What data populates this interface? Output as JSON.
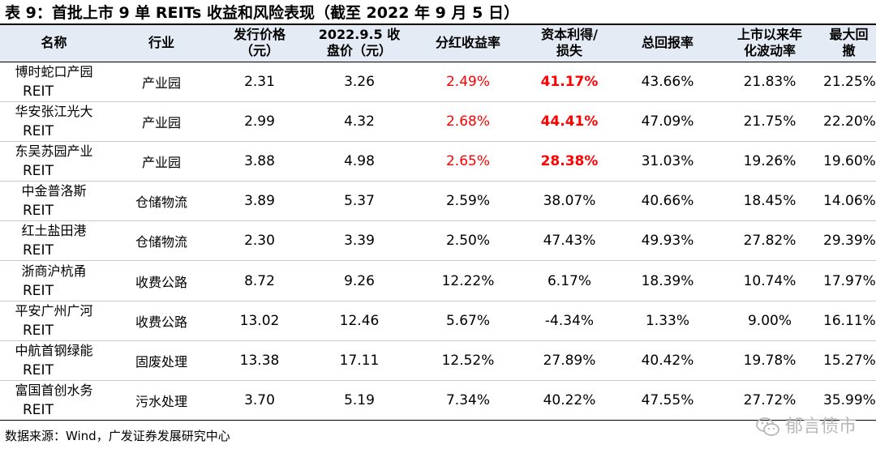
{
  "title": "表 9：首批上市 9 单 REITs 收益和风险表现（截至 2022 年 9 月 5 日）",
  "columns": [
    {
      "line1": "名称",
      "line2": ""
    },
    {
      "line1": "行业",
      "line2": ""
    },
    {
      "line1": "发行价格",
      "line2": "（元）"
    },
    {
      "line1": "2022.9.5 收",
      "line2": "盘价（元）"
    },
    {
      "line1": "分红收益率",
      "line2": ""
    },
    {
      "line1": "资本利得/",
      "line2": "损失"
    },
    {
      "line1": "总回报率",
      "line2": ""
    },
    {
      "line1": "上市以来年",
      "line2": "化波动率"
    },
    {
      "line1": "最大回撤",
      "line2": ""
    }
  ],
  "rows": [
    {
      "name1": "博时蛇口产园",
      "name2": "REIT",
      "sector": "产业园",
      "issue_price": "2.31",
      "close_price": "3.26",
      "dividend_yield": "2.49%",
      "capital_gain": "41.17%",
      "total_return": "43.66%",
      "volatility": "21.83%",
      "max_drawdown": "21.25%",
      "highlight": true
    },
    {
      "name1": "华安张江光大",
      "name2": "REIT",
      "sector": "产业园",
      "issue_price": "2.99",
      "close_price": "4.32",
      "dividend_yield": "2.68%",
      "capital_gain": "44.41%",
      "total_return": "47.09%",
      "volatility": "21.75%",
      "max_drawdown": "22.20%",
      "highlight": true
    },
    {
      "name1": "东吴苏园产业",
      "name2": "REIT",
      "sector": "产业园",
      "issue_price": "3.88",
      "close_price": "4.98",
      "dividend_yield": "2.65%",
      "capital_gain": "28.38%",
      "total_return": "31.03%",
      "volatility": "19.26%",
      "max_drawdown": "19.60%",
      "highlight": true
    },
    {
      "name1": "中金普洛斯",
      "name2": "REIT",
      "sector": "仓储物流",
      "issue_price": "3.89",
      "close_price": "5.37",
      "dividend_yield": "2.59%",
      "capital_gain": "38.07%",
      "total_return": "40.66%",
      "volatility": "18.45%",
      "max_drawdown": "14.06%",
      "highlight": false
    },
    {
      "name1": "红土盐田港",
      "name2": "REIT",
      "sector": "仓储物流",
      "issue_price": "2.30",
      "close_price": "3.39",
      "dividend_yield": "2.50%",
      "capital_gain": "47.43%",
      "total_return": "49.93%",
      "volatility": "27.82%",
      "max_drawdown": "29.39%",
      "highlight": false
    },
    {
      "name1": "浙商沪杭甬",
      "name2": "REIT",
      "sector": "收费公路",
      "issue_price": "8.72",
      "close_price": "9.26",
      "dividend_yield": "12.22%",
      "capital_gain": "6.17%",
      "total_return": "18.39%",
      "volatility": "10.74%",
      "max_drawdown": "17.97%",
      "highlight": false
    },
    {
      "name1": "平安广州广河",
      "name2": "REIT",
      "sector": "收费公路",
      "issue_price": "13.02",
      "close_price": "12.46",
      "dividend_yield": "5.67%",
      "capital_gain": "-4.34%",
      "total_return": "1.33%",
      "volatility": "9.00%",
      "max_drawdown": "16.11%",
      "highlight": false
    },
    {
      "name1": "中航首钢绿能",
      "name2": "REIT",
      "sector": "固废处理",
      "issue_price": "13.38",
      "close_price": "17.11",
      "dividend_yield": "12.52%",
      "capital_gain": "27.89%",
      "total_return": "40.42%",
      "volatility": "19.78%",
      "max_drawdown": "15.27%",
      "highlight": false
    },
    {
      "name1": "富国首创水务",
      "name2": "REIT",
      "sector": "污水处理",
      "issue_price": "3.70",
      "close_price": "5.19",
      "dividend_yield": "7.34%",
      "capital_gain": "40.22%",
      "total_return": "47.55%",
      "volatility": "27.72%",
      "max_drawdown": "35.99%",
      "highlight": false
    }
  ],
  "source": "数据来源：Wind，广发证券发展研究中心",
  "watermark": "郁言债市",
  "colors": {
    "highlight": "#ff0000",
    "header_bg": "#e4ebf5",
    "watermark": "#b7b7b7"
  }
}
